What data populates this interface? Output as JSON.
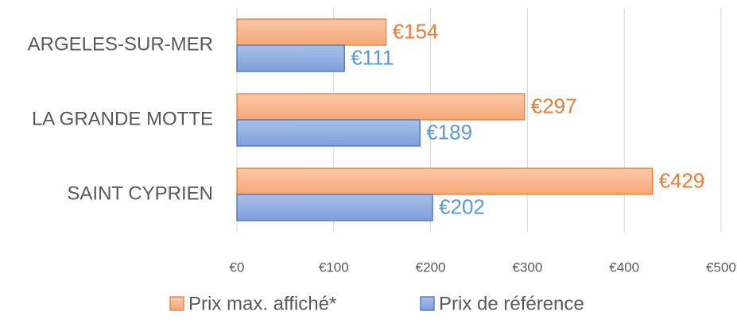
{
  "chart_data": {
    "type": "bar",
    "orientation": "horizontal",
    "categories": [
      "ARGELES-SUR-MER",
      "LA GRANDE MOTTE",
      "SAINT CYPRIEN"
    ],
    "series": [
      {
        "name": "Prix max. affiché*",
        "color": "#ed7d31",
        "values": [
          154,
          297,
          429
        ],
        "value_labels": [
          "€154",
          "€297",
          "€429"
        ]
      },
      {
        "name": "Prix de référence",
        "color": "#4472c4",
        "values": [
          111,
          189,
          202
        ],
        "value_labels": [
          "€111",
          "€189",
          "€202"
        ]
      }
    ],
    "xlim": [
      0,
      500
    ],
    "xticks": [
      {
        "value": 0,
        "label": "€0"
      },
      {
        "value": 100,
        "label": "€100"
      },
      {
        "value": 200,
        "label": "€200"
      },
      {
        "value": 300,
        "label": "€300"
      },
      {
        "value": 400,
        "label": "€400"
      },
      {
        "value": 500,
        "label": "€500"
      }
    ],
    "grid": true,
    "legend": "bottom"
  }
}
